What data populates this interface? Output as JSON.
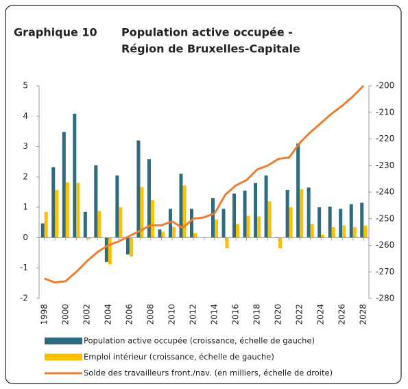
{
  "chart_data": {
    "type": "bar",
    "title_number": "Graphique 10",
    "title": [
      "Population active occupée -",
      "Région de Bruxelles-Capitale"
    ],
    "categories": [
      "1998",
      null,
      "2000",
      null,
      "2002",
      null,
      "2004",
      null,
      "2006",
      null,
      "2008",
      null,
      "2010",
      null,
      "2012",
      null,
      "2014",
      null,
      "2016",
      null,
      "2018",
      null,
      "2020",
      null,
      "2022",
      null,
      "2024",
      null,
      "2026",
      null,
      "2028"
    ],
    "series": [
      {
        "name": "Population active occupée (croissance, échelle de gauche)",
        "type": "bar",
        "color": "#2e6b80",
        "values": [
          0.47,
          2.32,
          3.48,
          4.08,
          0.85,
          2.38,
          -0.8,
          2.05,
          -0.55,
          3.2,
          2.58,
          0.27,
          0.95,
          2.1,
          0.95,
          0,
          1.3,
          0.95,
          1.45,
          1.55,
          1.8,
          2.05,
          0.02,
          1.57,
          3.1,
          1.65,
          1.0,
          1.02,
          0.95,
          1.1,
          1.15
        ]
      },
      {
        "name": "Emploi intérieur (croissance, échelle de gauche)",
        "type": "bar",
        "color": "#ffc000",
        "values": [
          0.85,
          1.57,
          1.82,
          1.8,
          -0.05,
          0.88,
          -0.88,
          1.0,
          -0.62,
          1.67,
          1.24,
          0.2,
          0.35,
          1.72,
          0.15,
          0,
          0.6,
          -0.35,
          0.45,
          0.72,
          0.7,
          1.2,
          -0.35,
          1.0,
          1.6,
          0.45,
          0.1,
          0.35,
          0.4,
          0.35,
          0.4
        ]
      },
      {
        "name": "Solde des travailleurs front./nav. (en milliers, échelle de droite)",
        "type": "line",
        "axis": "y2",
        "color": "#ed7d31",
        "values": [
          -272.5,
          -274,
          -273.5,
          -270,
          -266,
          -262.5,
          -260,
          -258.5,
          -256.5,
          -254.5,
          -252.5,
          -252.5,
          -251,
          -253.5,
          -250,
          -249.5,
          -248,
          -241,
          -237.5,
          -235.5,
          -231.5,
          -230,
          -227.5,
          -227,
          -221.5,
          -217.5,
          -214,
          -210.5,
          -207.5,
          -204,
          -200
        ]
      }
    ],
    "ylim": [
      -2,
      5
    ],
    "yticks": [
      -2,
      -1,
      0,
      1,
      2,
      3,
      4,
      5
    ],
    "y2lim": [
      -280,
      -200
    ],
    "y2ticks": [
      -280,
      -270,
      -260,
      -250,
      -240,
      -230,
      -220,
      -210,
      -200
    ],
    "grid": false
  }
}
